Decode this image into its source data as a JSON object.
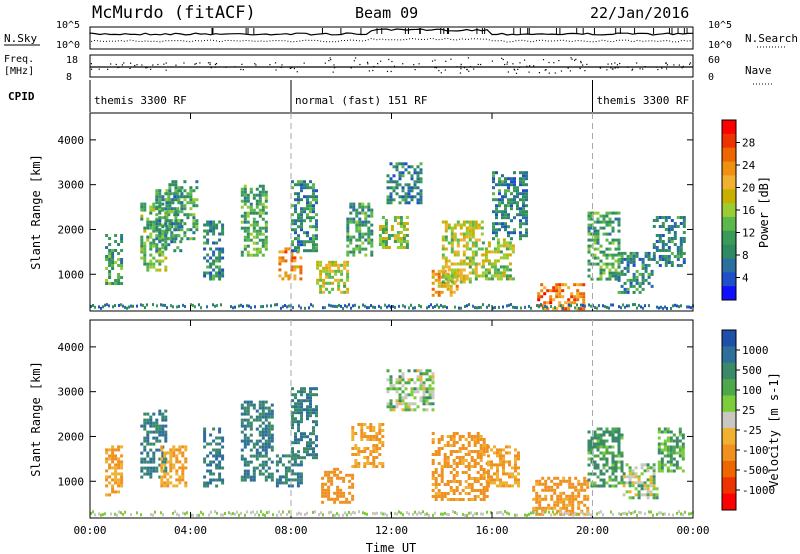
{
  "header": {
    "station": "McMurdo (fitACF)",
    "beam": "Beam 09",
    "date": "22/Jan/2016"
  },
  "top_panels": {
    "nsky_label": "N.Sky",
    "nsearch_label": "N.Search",
    "nsky_ticks": [
      "10^5",
      "10^0"
    ],
    "nsearch_ticks": [
      "10^5",
      "10^0"
    ],
    "freq_label_1": "Freq.",
    "freq_label_2": "[MHz]",
    "freq_ticks": [
      "18",
      "8"
    ],
    "nave_label": "Nave",
    "nave_ticks": [
      "60",
      "0"
    ],
    "cpid_label": "CPID",
    "modes": [
      {
        "label": "themis 3300 RF",
        "start_h": 0,
        "end_h": 8
      },
      {
        "label": "normal (fast) 151 RF",
        "start_h": 8,
        "end_h": 20
      },
      {
        "label": "themis 3300 RF",
        "start_h": 20,
        "end_h": 24
      }
    ]
  },
  "power_colorbar": {
    "title": "Power [dB]",
    "ticks": [
      "28",
      "24",
      "20",
      "16",
      "12",
      "8",
      "4"
    ],
    "colors": [
      "#ff0000",
      "#ee3300",
      "#ee6600",
      "#f09010",
      "#f0b030",
      "#c9b000",
      "#9acd32",
      "#5bb84a",
      "#3a9a5a",
      "#2e8a60",
      "#2a6fa0",
      "#2050c8",
      "#1010ff"
    ]
  },
  "velocity_colorbar": {
    "title": "Velocity [m s-1]",
    "ticks": [
      "1000",
      "500",
      "100",
      "25",
      "-25",
      "-100",
      "-500",
      "-1000"
    ],
    "colors": [
      "#1f4fa8",
      "#2e6f99",
      "#3a8a6a",
      "#4ca84a",
      "#7ccc3c",
      "#c8c8c0",
      "#f0b030",
      "#f09020",
      "#ee6600",
      "#ee3300",
      "#ff0000"
    ]
  },
  "chart_data": [
    {
      "type": "heatmap",
      "title": "Power",
      "ylabel": "Slant Range [km]",
      "xlabel": "Time UT",
      "ylim": [
        180,
        4600
      ],
      "xlim_hours": [
        0,
        24
      ],
      "yticks": [
        "1000",
        "2000",
        "3000",
        "4000"
      ],
      "xticks": [
        "00:00",
        "04:00",
        "08:00",
        "12:00",
        "16:00",
        "20:00",
        "00:00"
      ],
      "regions": [
        {
          "t0": 0.6,
          "t1": 1.2,
          "r0": 800,
          "r1": 1900,
          "db": 12
        },
        {
          "t0": 2.0,
          "t1": 3.0,
          "r0": 1100,
          "r1": 2600,
          "db": 14
        },
        {
          "t0": 2.6,
          "t1": 3.6,
          "r0": 1500,
          "r1": 2900,
          "db": 10
        },
        {
          "t0": 3.0,
          "t1": 4.2,
          "r0": 1800,
          "r1": 3100,
          "db": 12
        },
        {
          "t0": 4.5,
          "t1": 5.3,
          "r0": 900,
          "r1": 2200,
          "db": 9
        },
        {
          "t0": 6.0,
          "t1": 7.0,
          "r0": 1400,
          "r1": 3000,
          "db": 13
        },
        {
          "t0": 7.5,
          "t1": 8.4,
          "r0": 900,
          "r1": 1600,
          "db": 24
        },
        {
          "t0": 8.0,
          "t1": 9.0,
          "r0": 1500,
          "r1": 3100,
          "db": 10
        },
        {
          "t0": 9.0,
          "t1": 10.2,
          "r0": 600,
          "r1": 1300,
          "db": 18
        },
        {
          "t0": 10.2,
          "t1": 11.2,
          "r0": 1400,
          "r1": 2600,
          "db": 12
        },
        {
          "t0": 11.5,
          "t1": 12.6,
          "r0": 1600,
          "r1": 2300,
          "db": 16
        },
        {
          "t0": 11.8,
          "t1": 13.2,
          "r0": 2600,
          "r1": 3500,
          "db": 9
        },
        {
          "t0": 13.6,
          "t1": 14.6,
          "r0": 500,
          "r1": 1100,
          "db": 22
        },
        {
          "t0": 14.0,
          "t1": 15.6,
          "r0": 800,
          "r1": 2200,
          "db": 18
        },
        {
          "t0": 15.6,
          "t1": 16.8,
          "r0": 900,
          "r1": 1800,
          "db": 16
        },
        {
          "t0": 16.0,
          "t1": 17.4,
          "r0": 1800,
          "r1": 3300,
          "db": 9
        },
        {
          "t0": 17.8,
          "t1": 19.6,
          "r0": 250,
          "r1": 800,
          "db": 26
        },
        {
          "t0": 19.8,
          "t1": 21.0,
          "r0": 900,
          "r1": 2400,
          "db": 12
        },
        {
          "t0": 21.0,
          "t1": 22.4,
          "r0": 600,
          "r1": 1500,
          "db": 10
        },
        {
          "t0": 22.4,
          "t1": 23.6,
          "r0": 1200,
          "r1": 2300,
          "db": 9
        }
      ]
    },
    {
      "type": "heatmap",
      "title": "Velocity",
      "ylabel": "Slant Range [km]",
      "xlabel": "Time UT",
      "ylim": [
        180,
        4600
      ],
      "xlim_hours": [
        0,
        24
      ],
      "yticks": [
        "1000",
        "2000",
        "3000",
        "4000"
      ],
      "xticks": [
        "00:00",
        "04:00",
        "08:00",
        "12:00",
        "16:00",
        "20:00",
        "00:00"
      ],
      "regions": [
        {
          "t0": 0.6,
          "t1": 1.2,
          "r0": 700,
          "r1": 1800,
          "v": -200
        },
        {
          "t0": 2.0,
          "t1": 3.0,
          "r0": 1100,
          "r1": 2600,
          "v": 300
        },
        {
          "t0": 2.8,
          "t1": 3.8,
          "r0": 900,
          "r1": 1800,
          "v": -200
        },
        {
          "t0": 4.5,
          "t1": 5.3,
          "r0": 900,
          "r1": 2200,
          "v": 300
        },
        {
          "t0": 6.0,
          "t1": 7.2,
          "r0": 1000,
          "r1": 2800,
          "v": 300
        },
        {
          "t0": 7.4,
          "t1": 8.4,
          "r0": 900,
          "r1": 1600,
          "v": 300
        },
        {
          "t0": 8.0,
          "t1": 9.0,
          "r0": 1500,
          "r1": 3100,
          "v": 300
        },
        {
          "t0": 9.2,
          "t1": 10.4,
          "r0": 500,
          "r1": 1300,
          "v": -300
        },
        {
          "t0": 10.4,
          "t1": 11.6,
          "r0": 1300,
          "r1": 2300,
          "v": -200
        },
        {
          "t0": 11.8,
          "t1": 13.6,
          "r0": 2600,
          "r1": 3500,
          "v": 0
        },
        {
          "t0": 13.6,
          "t1": 15.8,
          "r0": 600,
          "r1": 2100,
          "v": -250
        },
        {
          "t0": 15.8,
          "t1": 17.0,
          "r0": 900,
          "r1": 1800,
          "v": -200
        },
        {
          "t0": 17.6,
          "t1": 19.8,
          "r0": 250,
          "r1": 1100,
          "v": -250
        },
        {
          "t0": 19.8,
          "t1": 21.2,
          "r0": 900,
          "r1": 2200,
          "v": 80
        },
        {
          "t0": 21.2,
          "t1": 22.6,
          "r0": 600,
          "r1": 1400,
          "v": 0
        },
        {
          "t0": 22.6,
          "t1": 23.6,
          "r0": 1200,
          "r1": 2200,
          "v": 60
        }
      ]
    }
  ]
}
